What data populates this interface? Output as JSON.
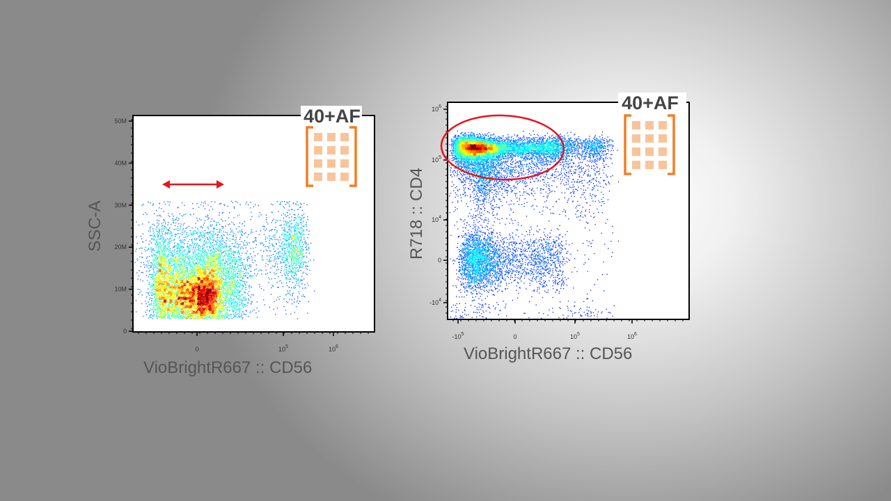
{
  "chart_data": [
    {
      "type": "scatter",
      "title": "",
      "badge": "40+AF",
      "xlabel": "VioBrightR667 :: CD56",
      "ylabel": "SSC-A",
      "x_scale": "biexponential",
      "y_scale": "linear",
      "x_ticks": [
        {
          "value": 0,
          "label": "0"
        },
        {
          "value": 100000,
          "label": "10",
          "exp": "5"
        },
        {
          "value": 1000000,
          "label": "10",
          "exp": "6"
        }
      ],
      "y_ticks": [
        {
          "value": 0,
          "label": "0"
        },
        {
          "value": 10000000,
          "label": "10M"
        },
        {
          "value": 20000000,
          "label": "20M"
        },
        {
          "value": 30000000,
          "label": "30M"
        },
        {
          "value": 40000000,
          "label": "40M"
        },
        {
          "value": 50000000,
          "label": "50M"
        }
      ],
      "ylim": [
        0,
        50000000
      ],
      "annotation": "double-headed arrow marking CD56-negative range",
      "populations": [
        {
          "name": "CD56-negative",
          "x_center": 0,
          "x_spread": 12000,
          "y_center": 11000000,
          "y_spread": 7000000,
          "y_min": 3000000,
          "y_max": 31000000,
          "n": 7000
        },
        {
          "name": "CD56-negative core",
          "x_center": 0,
          "x_spread": 5000,
          "y_center": 8000000,
          "y_spread": 3500000,
          "y_min": 3000000,
          "y_max": 31000000,
          "n": 3000
        },
        {
          "name": "CD56-positive",
          "x_center": 150000,
          "x_spread": 60000,
          "y_center": 20000000,
          "y_spread": 4000000,
          "y_min": 3000000,
          "y_max": 31000000,
          "n": 700
        },
        {
          "name": "scatter",
          "x_center": 60000,
          "x_spread": 120000,
          "y_center": 17000000,
          "y_spread": 8000000,
          "y_min": 3000000,
          "y_max": 31000000,
          "n": 700
        }
      ]
    },
    {
      "type": "scatter",
      "title": "",
      "badge": "40+AF",
      "xlabel": "VioBrightR667 :: CD56",
      "ylabel": "R718 :: CD4",
      "x_scale": "biexponential",
      "y_scale": "biexponential",
      "x_ticks": [
        {
          "value": -100000,
          "label": "-10",
          "exp": "5"
        },
        {
          "value": 0,
          "label": "0"
        },
        {
          "value": 100000,
          "label": "10",
          "exp": "5"
        },
        {
          "value": 1000000,
          "label": "10",
          "exp": "6"
        }
      ],
      "y_ticks": [
        {
          "value": -10000,
          "label": "-10",
          "exp": "4"
        },
        {
          "value": 0,
          "label": "0"
        },
        {
          "value": 10000,
          "label": "10",
          "exp": "4"
        },
        {
          "value": 100000,
          "label": "10",
          "exp": "5"
        },
        {
          "value": 1000000,
          "label": "10",
          "exp": "6"
        }
      ],
      "annotation": "red ellipse gate around CD4-positive population",
      "populations": [
        {
          "name": "CD4-positive",
          "x_center": -30000,
          "x_spread": 45000,
          "y_center": 170000,
          "y_spread": 60000,
          "n": 6000
        },
        {
          "name": "CD4-positive core",
          "x_center": -20000,
          "x_spread": 20000,
          "y_center": 170000,
          "y_spread": 25000,
          "n": 2500
        },
        {
          "name": "CD4-dim tail",
          "x_center": -15000,
          "x_spread": 15000,
          "y_center": 50000,
          "y_spread": 30000,
          "n": 1200
        },
        {
          "name": "CD4-negative",
          "x_center": -20000,
          "x_spread": 30000,
          "y_center": 0,
          "y_spread": 3000,
          "n": 3000
        },
        {
          "name": "CD56-positive CD4+",
          "x_center": 200000,
          "x_spread": 100000,
          "y_center": 180000,
          "y_spread": 50000,
          "n": 600
        },
        {
          "name": "scatter",
          "x_center": 80000,
          "x_spread": 150000,
          "y_center": 5000,
          "y_spread": 60000,
          "n": 900
        }
      ]
    }
  ],
  "colors": {
    "gate": "#e8141c",
    "bracket": "#f07e26",
    "cell": "#f9c49a",
    "frame": "#000000"
  }
}
